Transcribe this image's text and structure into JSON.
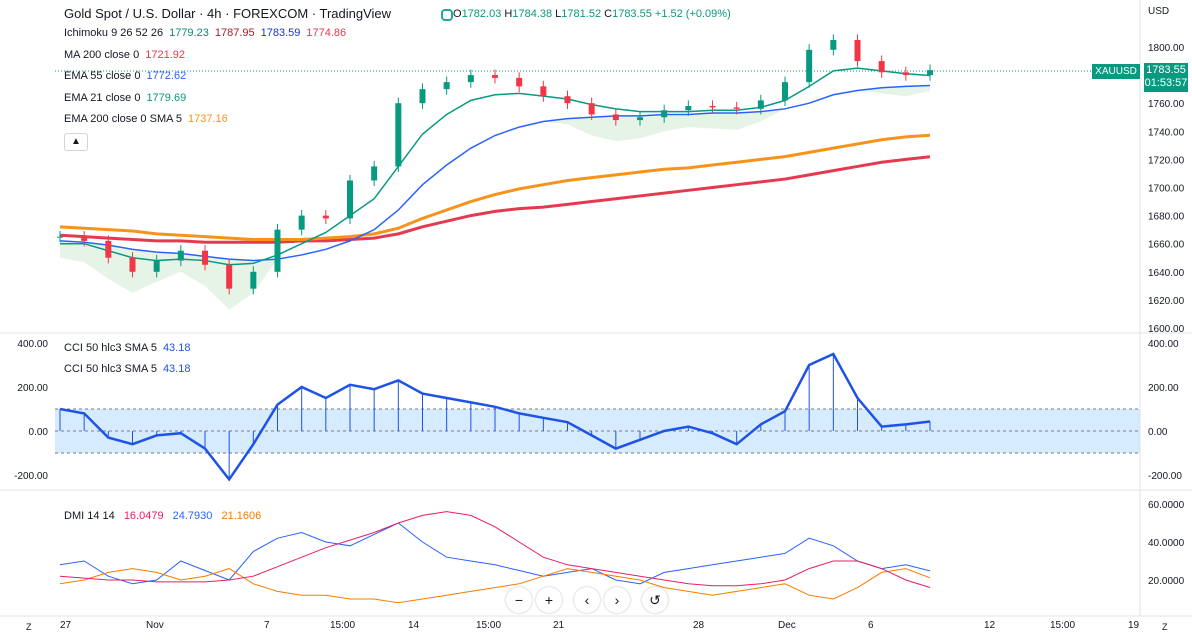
{
  "header": {
    "title": "Gold Spot / U.S. Dollar · 4h · FOREXCOM · TradingView",
    "ohlc": {
      "o_label": "O",
      "o": "1782.03",
      "h_label": "H",
      "h": "1784.38",
      "l_label": "L",
      "l": "1781.52",
      "c_label": "C",
      "c": "1783.55",
      "change": "+1.52 (+0.09%)"
    }
  },
  "colors": {
    "up": "#089981",
    "down": "#f23645",
    "ema55": "#2962ff",
    "ema21": "#089981",
    "ema200": "#f7931a",
    "ma200": "#e53950",
    "ichi_conv": "#0e8a72",
    "ichi_base": "#a71d2a",
    "ichi_lead": "#1537c9",
    "cci": "#1e53e5",
    "dmi_plus": "#2962ff",
    "dmi_minus": "#f57c00",
    "adx": "#e91e63"
  },
  "legend": [
    {
      "label": "Ichimoku 9 26 52 26",
      "values": [
        {
          "v": "1779.23",
          "c": "#0e8a72"
        },
        {
          "v": "1787.95",
          "c": "#a71d2a"
        },
        {
          "v": "1783.59",
          "c": "#1537c9"
        },
        {
          "v": "1774.86",
          "c": "#e53950"
        }
      ]
    },
    {
      "label": "MA 200 close 0",
      "values": [
        {
          "v": "1721.92",
          "c": "#e53950"
        }
      ]
    },
    {
      "label": "EMA 55 close 0",
      "values": [
        {
          "v": "1772.62",
          "c": "#2962ff"
        }
      ]
    },
    {
      "label": "EMA 21 close 0",
      "values": [
        {
          "v": "1779.69",
          "c": "#089981"
        }
      ]
    },
    {
      "label": "EMA 200 close 0 SMA 5",
      "values": [
        {
          "v": "1737.16",
          "c": "#f7931a"
        }
      ]
    }
  ],
  "collapse_icon": "chevron-up-icon",
  "price_axis": {
    "currency": "USD",
    "ticks": [
      "1800.00",
      "1780.00",
      "1760.00",
      "1740.00",
      "1720.00",
      "1700.00",
      "1680.00",
      "1660.00",
      "1640.00",
      "1620.00",
      "1600.00"
    ],
    "symbol": "XAUUSD",
    "last_price": "1783.55",
    "countdown": "01:53:57"
  },
  "cci_pane": {
    "legend": [
      {
        "label": "CCI 50 hlc3 SMA 5",
        "value": "43.18"
      },
      {
        "label": "CCI 50 hlc3 SMA 5",
        "value": "43.18"
      }
    ],
    "ticks": [
      "400.00",
      "200.00",
      "0.00",
      "-200.00"
    ]
  },
  "dmi_pane": {
    "legend": "DMI 14 14",
    "values": [
      {
        "v": "16.0479",
        "c": "#e91e63"
      },
      {
        "v": "24.7930",
        "c": "#2962ff"
      },
      {
        "v": "21.1606",
        "c": "#f57c00"
      }
    ],
    "ticks": [
      "60.0000",
      "40.0000",
      "20.0000"
    ]
  },
  "toolbar": {
    "buttons": [
      {
        "name": "zoom-out-button",
        "icon": "−"
      },
      {
        "name": "zoom-in-button",
        "icon": "+"
      },
      {
        "name": "scroll-left-button",
        "icon": "‹"
      },
      {
        "name": "scroll-right-button",
        "icon": "›"
      },
      {
        "name": "reset-button",
        "icon": "↺"
      }
    ]
  },
  "time_axis": [
    "27",
    "Nov",
    "7",
    "15:00",
    "14",
    "15:00",
    "21",
    "28",
    "Dec",
    "6",
    "12",
    "15:00",
    "19"
  ],
  "corner_left": "Z",
  "corner_right": "Z",
  "chart_data": [
    {
      "type": "line",
      "title": "Gold Spot / U.S. Dollar · 4h",
      "ylim": [
        1600,
        1810
      ],
      "series": [
        {
          "name": "Price close",
          "values": [
            1665,
            1662,
            1650,
            1640,
            1648,
            1655,
            1645,
            1628,
            1640,
            1670,
            1680,
            1678,
            1705,
            1715,
            1760,
            1770,
            1775,
            1780,
            1778,
            1772,
            1765,
            1760,
            1752,
            1748,
            1750,
            1755,
            1758,
            1757,
            1756,
            1762,
            1775,
            1798,
            1805,
            1790,
            1782,
            1780,
            1783.55
          ]
        },
        {
          "name": "EMA 21",
          "values": [
            1660,
            1660,
            1655,
            1650,
            1648,
            1649,
            1648,
            1645,
            1646,
            1652,
            1660,
            1668,
            1680,
            1692,
            1715,
            1738,
            1752,
            1762,
            1766,
            1767,
            1765,
            1763,
            1759,
            1756,
            1754,
            1754,
            1754,
            1755,
            1755,
            1757,
            1762,
            1772,
            1783,
            1785,
            1783,
            1781,
            1779.69
          ]
        },
        {
          "name": "EMA 55",
          "values": [
            1662,
            1661,
            1659,
            1656,
            1654,
            1653,
            1651,
            1649,
            1648,
            1649,
            1652,
            1656,
            1662,
            1670,
            1684,
            1702,
            1716,
            1728,
            1737,
            1743,
            1747,
            1749,
            1750,
            1751,
            1751,
            1752,
            1752,
            1753,
            1753,
            1754,
            1756,
            1760,
            1766,
            1769,
            1771,
            1772,
            1772.62
          ]
        },
        {
          "name": "EMA 200",
          "values": [
            1672,
            1671,
            1670,
            1669,
            1667,
            1666,
            1665,
            1664,
            1663,
            1663,
            1663,
            1664,
            1665,
            1667,
            1671,
            1678,
            1684,
            1690,
            1695,
            1699,
            1702,
            1705,
            1707,
            1709,
            1711,
            1713,
            1714,
            1716,
            1718,
            1720,
            1722,
            1725,
            1728,
            1731,
            1734,
            1736,
            1737.16
          ]
        },
        {
          "name": "MA 200",
          "values": [
            1666,
            1665,
            1664,
            1663,
            1662,
            1662,
            1661,
            1661,
            1661,
            1661,
            1662,
            1662,
            1663,
            1664,
            1667,
            1672,
            1676,
            1680,
            1683,
            1685,
            1686,
            1688,
            1690,
            1692,
            1694,
            1696,
            1698,
            1700,
            1702,
            1704,
            1706,
            1709,
            1712,
            1715,
            1718,
            1720,
            1721.92
          ]
        }
      ]
    },
    {
      "type": "area",
      "title": "CCI 50 hlc3 SMA 5",
      "ylim": [
        -250,
        400
      ],
      "series": [
        {
          "name": "CCI",
          "values": [
            100,
            80,
            -30,
            -60,
            -20,
            -10,
            -80,
            -220,
            -60,
            120,
            200,
            150,
            210,
            190,
            230,
            170,
            150,
            130,
            110,
            80,
            60,
            40,
            -20,
            -80,
            -40,
            0,
            20,
            -10,
            -60,
            30,
            90,
            300,
            350,
            150,
            20,
            30,
            43.18
          ]
        }
      ]
    },
    {
      "type": "line",
      "title": "DMI 14 14",
      "ylim": [
        5,
        60
      ],
      "series": [
        {
          "name": "+DI",
          "values": [
            28,
            30,
            22,
            18,
            20,
            30,
            25,
            20,
            35,
            42,
            45,
            40,
            38,
            44,
            50,
            40,
            32,
            30,
            28,
            25,
            22,
            24,
            26,
            20,
            18,
            24,
            26,
            28,
            30,
            32,
            34,
            42,
            38,
            30,
            26,
            28,
            24.793
          ]
        },
        {
          "name": "-DI",
          "values": [
            18,
            20,
            24,
            26,
            24,
            20,
            22,
            26,
            18,
            14,
            12,
            12,
            10,
            10,
            8,
            10,
            12,
            14,
            16,
            18,
            22,
            26,
            24,
            22,
            20,
            16,
            14,
            12,
            14,
            16,
            18,
            12,
            10,
            16,
            24,
            26,
            21.1606
          ]
        },
        {
          "name": "ADX",
          "values": [
            22,
            21,
            20,
            20,
            19,
            19,
            19,
            20,
            22,
            27,
            32,
            37,
            41,
            45,
            50,
            54,
            56,
            54,
            48,
            40,
            32,
            28,
            26,
            24,
            22,
            20,
            18,
            17,
            17,
            18,
            20,
            26,
            30,
            30,
            26,
            20,
            16.0479
          ]
        }
      ]
    }
  ]
}
